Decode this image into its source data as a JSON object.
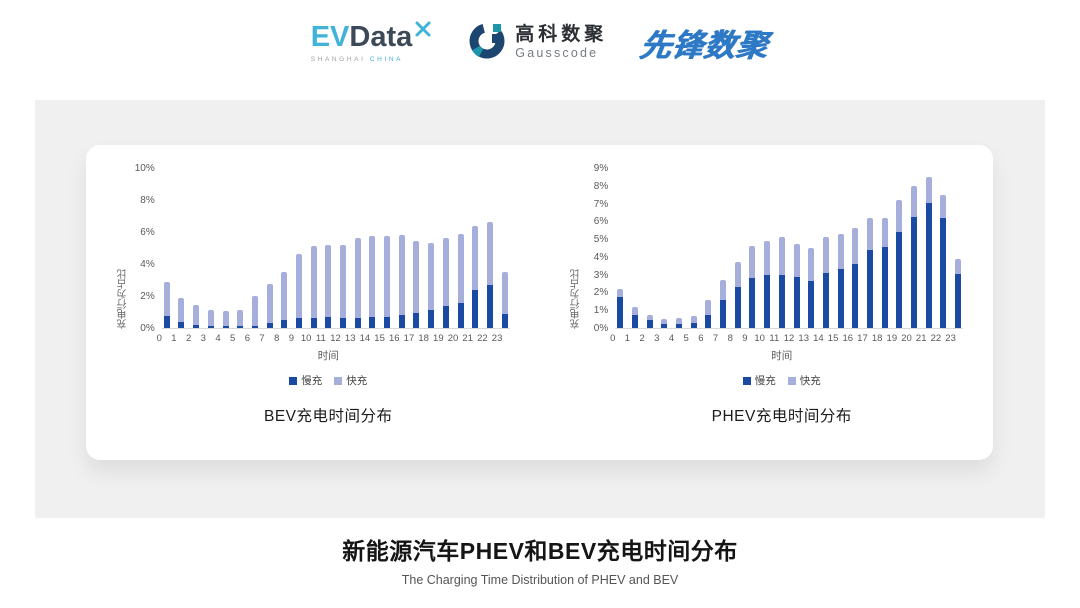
{
  "header": {
    "logos": {
      "evdata": {
        "part1": "EV",
        "part2": "Data",
        "subtitle1": "SHANGHAI",
        "subtitle2": "CHINA",
        "light_blue": "#41B3D9",
        "dark": "#3C4A57"
      },
      "gausscode": {
        "name_cn": "高科数聚",
        "name_en": "Gausscode",
        "navy": "#1C4570",
        "teal": "#1D96AC"
      },
      "pioneer": {
        "text": "先锋数聚",
        "color": "#2E79C5"
      }
    }
  },
  "chart_data": [
    {
      "type": "bar",
      "stacked": true,
      "title": "BEV充电时间分布",
      "xlabel": "时间",
      "ylabel": "充电行为占比",
      "ylim": [
        0,
        10
      ],
      "yticks": [
        "0%",
        "2%",
        "4%",
        "6%",
        "8%",
        "10%"
      ],
      "grid": false,
      "legend_position": "bottom",
      "categories": [
        "0",
        "1",
        "2",
        "3",
        "4",
        "5",
        "6",
        "7",
        "8",
        "9",
        "10",
        "11",
        "12",
        "13",
        "14",
        "15",
        "16",
        "17",
        "18",
        "19",
        "20",
        "21",
        "22",
        "23"
      ],
      "series": [
        {
          "name": "慢充",
          "color": "#1B4AA2",
          "values": [
            0.75,
            0.35,
            0.2,
            0.1,
            0.1,
            0.1,
            0.15,
            0.3,
            0.5,
            0.65,
            0.65,
            0.7,
            0.6,
            0.65,
            0.7,
            0.7,
            0.8,
            0.95,
            1.1,
            1.35,
            1.55,
            2.4,
            2.7,
            0.9
          ]
        },
        {
          "name": "快充",
          "color": "#A6AFDB",
          "values": [
            2.15,
            1.5,
            1.25,
            1.05,
            0.95,
            1.05,
            1.85,
            2.45,
            3.0,
            3.95,
            4.45,
            4.5,
            4.6,
            4.95,
            5.05,
            5.05,
            5.0,
            4.5,
            4.2,
            4.25,
            4.35,
            4.0,
            3.9,
            2.6
          ]
        }
      ]
    },
    {
      "type": "bar",
      "stacked": true,
      "title": "PHEV充电时间分布",
      "xlabel": "时间",
      "ylabel": "充电行为占比",
      "ylim": [
        0,
        9
      ],
      "yticks": [
        "0%",
        "1%",
        "2%",
        "3%",
        "4%",
        "5%",
        "6%",
        "7%",
        "8%",
        "9%"
      ],
      "grid": false,
      "legend_position": "bottom",
      "categories": [
        "0",
        "1",
        "2",
        "3",
        "4",
        "5",
        "6",
        "7",
        "8",
        "9",
        "10",
        "11",
        "12",
        "13",
        "14",
        "15",
        "16",
        "17",
        "18",
        "19",
        "20",
        "21",
        "22",
        "23"
      ],
      "series": [
        {
          "name": "慢充",
          "color": "#1B4AA2",
          "values": [
            1.75,
            0.75,
            0.45,
            0.25,
            0.25,
            0.3,
            0.75,
            1.6,
            2.3,
            2.8,
            3.0,
            3.0,
            2.85,
            2.65,
            3.1,
            3.3,
            3.6,
            4.4,
            4.55,
            5.4,
            6.25,
            7.05,
            6.2,
            3.05
          ]
        },
        {
          "name": "快充",
          "color": "#A6AFDB",
          "values": [
            0.45,
            0.45,
            0.3,
            0.25,
            0.3,
            0.4,
            0.85,
            1.1,
            1.4,
            1.8,
            1.9,
            2.1,
            1.85,
            1.85,
            2.0,
            2.0,
            2.0,
            1.8,
            1.65,
            1.8,
            1.75,
            1.45,
            1.3,
            0.85
          ]
        }
      ]
    }
  ],
  "footer": {
    "title_cn": "新能源汽车PHEV和BEV充电时间分布",
    "title_en": "The Charging Time Distribution of PHEV and BEV"
  }
}
